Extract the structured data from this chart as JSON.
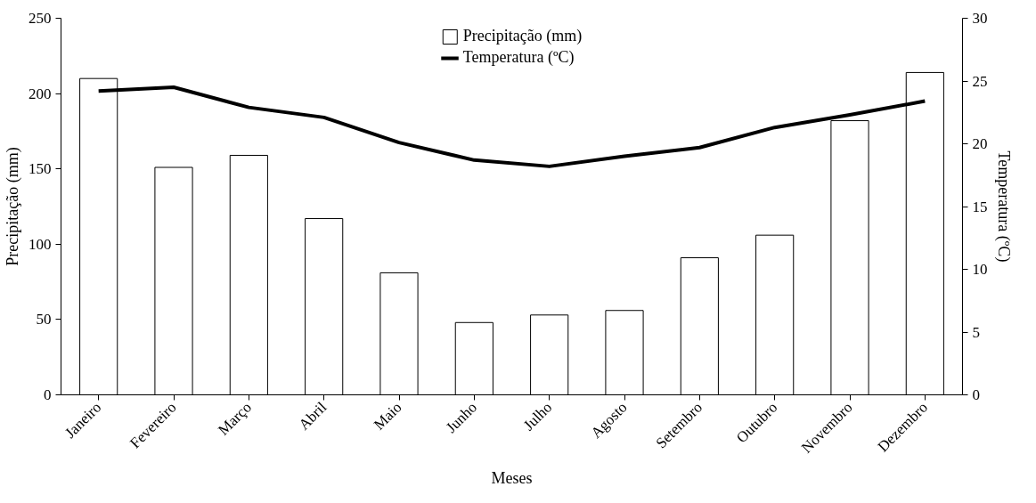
{
  "chart_data": {
    "type": "bar",
    "xlabel": "Meses",
    "ylabel": "Precipitação (mm)",
    "y2label": "Temperatura (ºC)",
    "categories": [
      "Janeiro",
      "Fevereiro",
      "Março",
      "Abril",
      "Maio",
      "Junho",
      "Julho",
      "Agosto",
      "Setembro",
      "Outubro",
      "Novembro",
      "Dezembro"
    ],
    "series": [
      {
        "name": "Precipitação (mm)",
        "color": "#ffffff",
        "values": [
          210,
          151,
          159,
          117,
          81,
          48,
          53,
          56,
          91,
          106,
          182,
          214
        ]
      },
      {
        "name": "Temperatura (ºC)",
        "type": "line",
        "axis": "y2",
        "color": "#000000",
        "values": [
          24.2,
          24.5,
          22.9,
          22.1,
          20.1,
          18.7,
          18.2,
          19.0,
          19.7,
          21.3,
          22.3,
          23.4
        ]
      }
    ],
    "ylim": [
      0,
      250
    ],
    "yticks": [
      0,
      50,
      100,
      150,
      200,
      250
    ],
    "y2lim": [
      0,
      30
    ],
    "y2ticks": [
      0,
      5,
      10,
      15,
      20,
      25,
      30
    ],
    "legend": "top"
  }
}
